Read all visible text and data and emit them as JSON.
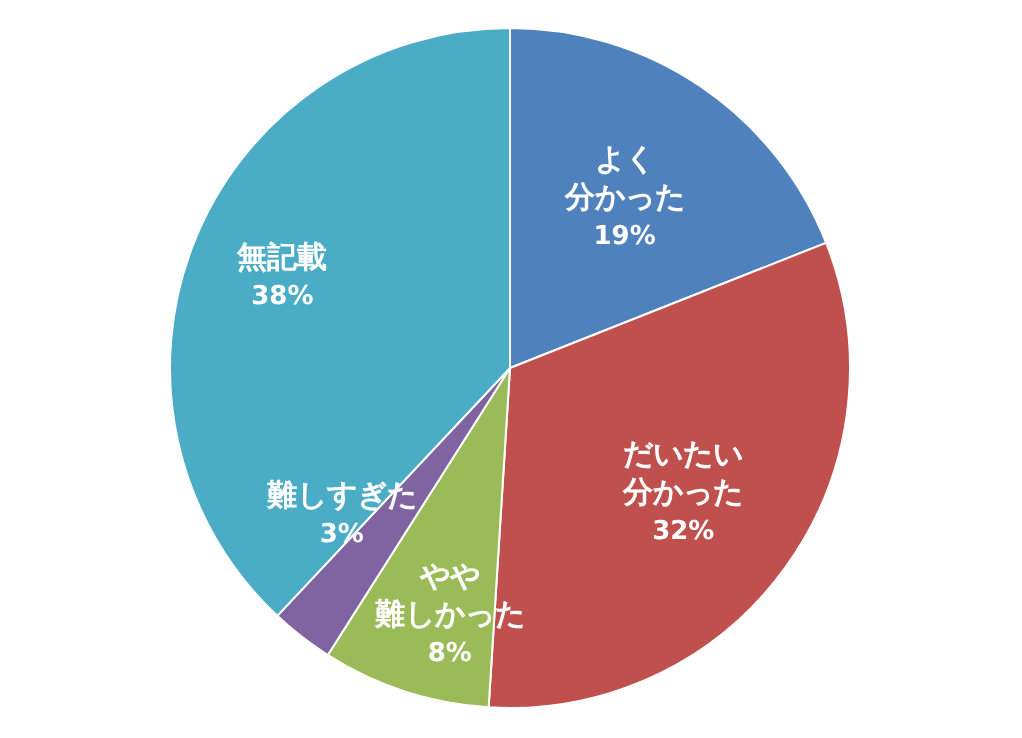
{
  "chart_data": {
    "type": "pie",
    "categories": [
      "よく分かった",
      "だいたい分かった",
      "やや難しかった",
      "難しすぎた",
      "無記載"
    ],
    "values": [
      19,
      32,
      8,
      3,
      38
    ],
    "colors": [
      "#4f81bd",
      "#c0504d",
      "#9bbb59",
      "#8064a2",
      "#4bacc6"
    ],
    "value_labels": [
      "19%",
      "32%",
      "8%",
      "3%",
      "38%"
    ]
  }
}
